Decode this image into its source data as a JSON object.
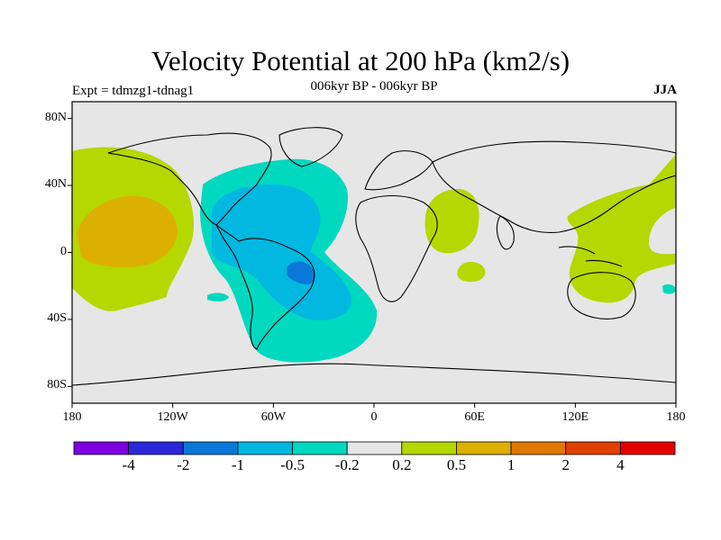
{
  "chart_data": {
    "type": "heatmap",
    "title": "Velocity Potential at 200 hPa (km2/s)",
    "subtitle_left": "Expt = tdmzg1-tdnag1",
    "subtitle_center": "006kyr BP - 006kyr BP",
    "subtitle_right": "JJA",
    "x_range": [
      -180,
      180
    ],
    "y_range": [
      -90,
      90
    ],
    "x_ticks": [
      {
        "value": -180,
        "label": "180"
      },
      {
        "value": -120,
        "label": "120W"
      },
      {
        "value": -60,
        "label": "60W"
      },
      {
        "value": 0,
        "label": "0"
      },
      {
        "value": 60,
        "label": "60E"
      },
      {
        "value": 120,
        "label": "120E"
      },
      {
        "value": 180,
        "label": "180"
      }
    ],
    "y_ticks": [
      {
        "value": 80,
        "label": "80N"
      },
      {
        "value": 40,
        "label": "40N"
      },
      {
        "value": 0,
        "label": "0"
      },
      {
        "value": -40,
        "label": "40S"
      },
      {
        "value": -80,
        "label": "80S"
      }
    ],
    "colorbar": {
      "colors": [
        "#7f00e0",
        "#2a28d8",
        "#0a78d8",
        "#00b8e0",
        "#00d8c0",
        "#e6e6e6",
        "#b4d800",
        "#dcb000",
        "#e07800",
        "#e04000",
        "#e60000"
      ],
      "labels": [
        "-4",
        "-2",
        "-1",
        "-0.5",
        "-0.2",
        "0.2",
        "0.5",
        "1",
        "2",
        "4"
      ]
    },
    "regions": [
      {
        "level": "-0.2",
        "color": "#00d8c0",
        "description": "Atlantic / Americas negative anomaly"
      },
      {
        "level": "-0.5",
        "color": "#00b8e0",
        "description": "Caribbean to South America"
      },
      {
        "level": "-1",
        "color": "#0a78d8",
        "description": "Brazil core"
      },
      {
        "level": "0.2",
        "color": "#b4d800",
        "description": "Central Pacific"
      },
      {
        "level": "0.5",
        "color": "#dcb000",
        "description": "Central Pacific core"
      },
      {
        "level": "0.2",
        "color": "#b4d800",
        "description": "Arabia / East Africa"
      },
      {
        "level": "0.2",
        "color": "#b4d800",
        "description": "Maritime Continent / Australia"
      }
    ]
  }
}
